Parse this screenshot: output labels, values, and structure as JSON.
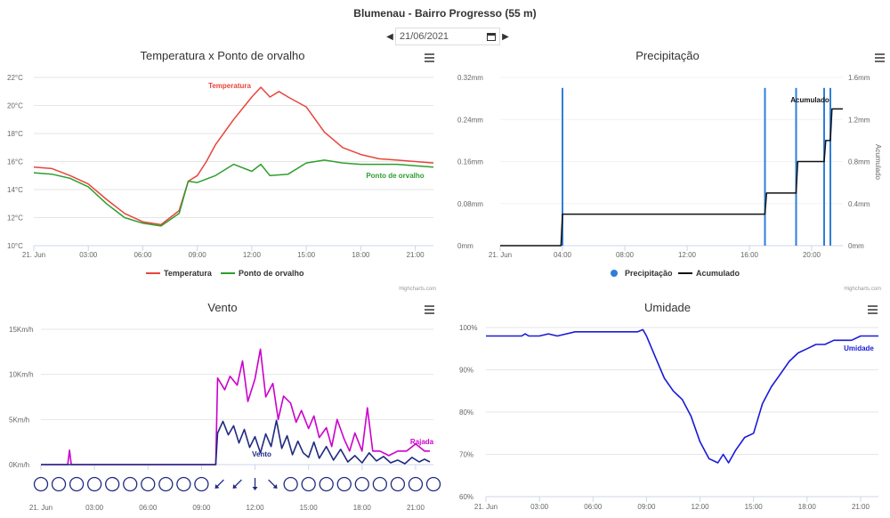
{
  "page": {
    "title": "Blumenau - Bairro Progresso (55 m)",
    "date_value": "21/06/2021",
    "prev_icon": "caret-left-icon",
    "next_icon": "caret-right-icon",
    "calendar_icon": "calendar-icon",
    "menu_icon": "hamburger-menu-icon",
    "credits": "Highcharts.com"
  },
  "chart_data": [
    {
      "id": "temp",
      "type": "line",
      "title": "Temperatura x Ponto de orvalho",
      "x_ticks": [
        "21. Jun",
        "03:00",
        "06:00",
        "09:00",
        "12:00",
        "15:00",
        "18:00",
        "21:00"
      ],
      "x_tick_hours": [
        0,
        3,
        6,
        9,
        12,
        15,
        18,
        21
      ],
      "xlim": [
        0,
        22
      ],
      "ylim": [
        10,
        22
      ],
      "y_ticks": [
        "10°C",
        "12°C",
        "14°C",
        "16°C",
        "18°C",
        "20°C",
        "22°C"
      ],
      "y_tick_values": [
        10,
        12,
        14,
        16,
        18,
        20,
        22
      ],
      "grid": true,
      "legend_position": "bottom",
      "series": [
        {
          "name": "Temperatura",
          "color": "#e8453c",
          "label": "Temperatura",
          "x": [
            0,
            1,
            2,
            3,
            4,
            5,
            6,
            7,
            8,
            8.5,
            9,
            9.5,
            10,
            11,
            12,
            12.5,
            13,
            13.5,
            14,
            15,
            16,
            17,
            18,
            19,
            20,
            21,
            22
          ],
          "y": [
            15.6,
            15.5,
            15.0,
            14.4,
            13.3,
            12.3,
            11.7,
            11.5,
            12.5,
            14.6,
            15.0,
            16.0,
            17.2,
            19.0,
            20.6,
            21.3,
            20.6,
            21.0,
            20.6,
            19.9,
            18.1,
            17.0,
            16.5,
            16.2,
            16.1,
            16.0,
            15.9
          ]
        },
        {
          "name": "Ponto de orvalho",
          "color": "#2e9e2e",
          "label": "Ponto de orvalho",
          "x": [
            0,
            1,
            2,
            3,
            4,
            5,
            6,
            7,
            8,
            8.5,
            9,
            10,
            11,
            12,
            12.5,
            13,
            14,
            15,
            16,
            17,
            18,
            19,
            20,
            21,
            22
          ],
          "y": [
            15.2,
            15.1,
            14.8,
            14.2,
            13.0,
            12.0,
            11.6,
            11.4,
            12.3,
            14.6,
            14.5,
            15.0,
            15.8,
            15.3,
            15.8,
            15.0,
            15.1,
            15.9,
            16.1,
            15.9,
            15.8,
            15.8,
            15.8,
            15.7,
            15.6
          ]
        }
      ]
    },
    {
      "id": "rain",
      "type": "bar",
      "title": "Precipitação",
      "x_ticks": [
        "21. Jun",
        "04:00",
        "08:00",
        "12:00",
        "16:00",
        "20:00"
      ],
      "x_tick_hours": [
        0,
        4,
        8,
        12,
        16,
        20
      ],
      "xlim": [
        0,
        22
      ],
      "ylim": [
        0,
        0.32
      ],
      "y_ticks": [
        "0mm",
        "0.08mm",
        "0.16mm",
        "0.24mm",
        "0.32mm"
      ],
      "y_tick_values": [
        0,
        0.08,
        0.16,
        0.24,
        0.32
      ],
      "y2lim": [
        0,
        1.6
      ],
      "y2_ticks": [
        "0mm",
        "0.4mm",
        "0.8mm",
        "1.2mm",
        "1.6mm"
      ],
      "y2_tick_values": [
        0,
        0.4,
        0.8,
        1.2,
        1.6
      ],
      "y2label": "Acumulado",
      "legend_position": "bottom",
      "series": [
        {
          "name": "Precipitação",
          "color": "#2f7ed8",
          "x": [
            4.0,
            17.0,
            19.0,
            20.8,
            21.2
          ],
          "y": [
            0.3,
            0.3,
            0.3,
            0.3,
            0.3
          ]
        },
        {
          "name": "Acumulado",
          "color": "#111111",
          "label": "Acumulado",
          "x": [
            0,
            3.9,
            4.0,
            17.0,
            17.1,
            19.0,
            19.1,
            20.8,
            20.9,
            21.2,
            21.3,
            22
          ],
          "y": [
            0,
            0,
            0.3,
            0.3,
            0.5,
            0.5,
            0.8,
            0.8,
            1.0,
            1.0,
            1.3,
            1.3
          ]
        }
      ]
    },
    {
      "id": "wind",
      "type": "line",
      "title": "Vento",
      "x_ticks": [
        "21. Jun",
        "03:00",
        "06:00",
        "09:00",
        "12:00",
        "15:00",
        "18:00",
        "21:00"
      ],
      "x_tick_hours": [
        0,
        3,
        6,
        9,
        12,
        15,
        18,
        21
      ],
      "xlim": [
        0,
        22
      ],
      "ylim": [
        0,
        15
      ],
      "y_ticks": [
        "0Km/h",
        "5Km/h",
        "10Km/h",
        "15Km/h"
      ],
      "y_tick_values": [
        0,
        5,
        10,
        15
      ],
      "grid": true,
      "series": [
        {
          "name": "Rajada",
          "color": "#cc00cc",
          "label": "Rajada",
          "x": [
            0,
            1.5,
            1.6,
            1.7,
            1.8,
            9.8,
            9.9,
            10.3,
            10.6,
            11.0,
            11.3,
            11.6,
            12.0,
            12.3,
            12.6,
            13.0,
            13.3,
            13.6,
            14.0,
            14.3,
            14.6,
            15.0,
            15.3,
            15.6,
            16.0,
            16.3,
            16.6,
            17.0,
            17.3,
            17.6,
            18.0,
            18.3,
            18.6,
            19.0,
            19.5,
            20.0,
            20.5,
            21.0,
            21.5,
            21.8
          ],
          "y": [
            0,
            0,
            1.6,
            0,
            0,
            0,
            9.6,
            8.3,
            9.8,
            8.8,
            11.5,
            7.0,
            9.5,
            12.8,
            7.5,
            9.0,
            5.0,
            7.6,
            6.8,
            4.7,
            6.0,
            4.0,
            5.4,
            3.0,
            4.1,
            2.0,
            5.0,
            2.8,
            1.5,
            3.5,
            1.5,
            6.3,
            1.5,
            1.5,
            1.0,
            1.5,
            1.5,
            2.3,
            1.5,
            1.5
          ]
        },
        {
          "name": "Vento",
          "color": "#1f2a80",
          "label": "Vento",
          "x": [
            0,
            9.8,
            9.9,
            10.2,
            10.5,
            10.8,
            11.1,
            11.4,
            11.7,
            12.0,
            12.3,
            12.6,
            12.9,
            13.2,
            13.5,
            13.8,
            14.1,
            14.4,
            14.7,
            15.0,
            15.3,
            15.6,
            16.0,
            16.4,
            16.8,
            17.2,
            17.6,
            18.0,
            18.4,
            18.8,
            19.2,
            19.6,
            20.0,
            20.4,
            20.8,
            21.2,
            21.5,
            21.8
          ],
          "y": [
            0,
            0,
            3.5,
            4.8,
            3.3,
            4.3,
            2.4,
            3.9,
            1.9,
            3.1,
            1.3,
            3.4,
            2.0,
            4.9,
            1.8,
            3.2,
            1.1,
            2.6,
            1.3,
            0.8,
            2.5,
            0.7,
            2.0,
            0.5,
            1.7,
            0.3,
            1.0,
            0.2,
            1.3,
            0.4,
            0.9,
            0.2,
            0.5,
            0.1,
            0.8,
            0.3,
            0.6,
            0.3
          ]
        }
      ],
      "direction_hours": [
        0,
        1,
        2,
        3,
        4,
        5,
        6,
        7,
        8,
        9,
        10,
        11,
        12,
        13,
        14,
        15,
        16,
        17,
        18,
        19,
        20,
        21,
        22
      ],
      "direction_markers": [
        "calm",
        "calm",
        "calm",
        "calm",
        "calm",
        "calm",
        "calm",
        "calm",
        "calm",
        "calm",
        "SW",
        "SW",
        "S",
        "SE",
        "calm",
        "calm",
        "calm",
        "calm",
        "calm",
        "calm",
        "calm",
        "calm",
        "calm"
      ]
    },
    {
      "id": "hum",
      "type": "line",
      "title": "Umidade",
      "x_ticks": [
        "21. Jun",
        "03:00",
        "06:00",
        "09:00",
        "12:00",
        "15:00",
        "18:00",
        "21:00"
      ],
      "x_tick_hours": [
        0,
        3,
        6,
        9,
        12,
        15,
        18,
        21
      ],
      "xlim": [
        0,
        22
      ],
      "ylim": [
        60,
        100
      ],
      "y_ticks": [
        "60%",
        "70%",
        "80%",
        "90%",
        "100%"
      ],
      "y_tick_values": [
        60,
        70,
        80,
        90,
        100
      ],
      "grid": true,
      "series": [
        {
          "name": "Umidade",
          "color": "#1a1ad8",
          "label": "Umidade",
          "x": [
            0,
            1,
            2,
            2.2,
            2.4,
            3,
            3.5,
            4,
            5,
            6,
            7,
            8,
            8.5,
            8.8,
            9,
            9.5,
            10,
            10.5,
            11,
            11.5,
            12,
            12.5,
            13,
            13.3,
            13.6,
            14,
            14.5,
            15,
            15.5,
            16,
            16.5,
            17,
            17.5,
            18,
            18.5,
            19,
            19.5,
            20,
            20.5,
            21,
            21.5,
            22
          ],
          "y": [
            98,
            98,
            98,
            98.5,
            98,
            98,
            98.5,
            98,
            99,
            99,
            99,
            99,
            99,
            99.5,
            98,
            93,
            88,
            85,
            83,
            79,
            73,
            69,
            68,
            70,
            68,
            71,
            74,
            75,
            82,
            86,
            89,
            92,
            94,
            95,
            96,
            96,
            97,
            97,
            97,
            98,
            98,
            98
          ]
        }
      ]
    }
  ]
}
